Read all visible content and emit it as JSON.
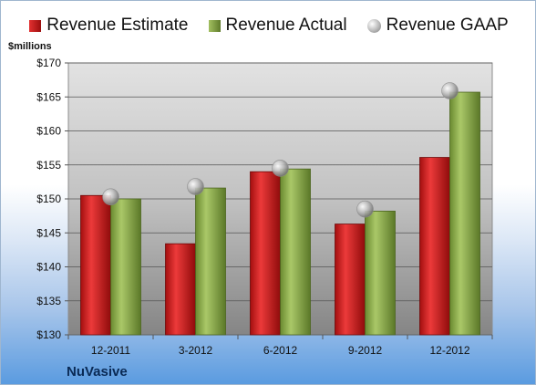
{
  "legend": {
    "items": [
      {
        "label": "Revenue Estimate",
        "color": "#cc1a1a",
        "shape": "square"
      },
      {
        "label": "Revenue Actual",
        "color": "#8aa84a",
        "shape": "square"
      },
      {
        "label": "Revenue GAAP",
        "color": "#b8b8b8",
        "shape": "circle"
      }
    ]
  },
  "unit_label": "$millions",
  "brand": "NuVasive",
  "colors": {
    "estimate": "#cc1a1a",
    "actual": "#8aa84a",
    "gaap": "#b8b8b8",
    "plot_bg_top": "#dcdcdc",
    "plot_bg_bottom": "#8a8a8a",
    "page_bottom": "#5a9be0"
  },
  "chart_data": {
    "type": "bar",
    "categories": [
      "12-2011",
      "3-2012",
      "6-2012",
      "9-2012",
      "12-2012"
    ],
    "series": [
      {
        "name": "Revenue Estimate",
        "kind": "bar",
        "values": [
          150.5,
          143.4,
          154.0,
          146.3,
          156.1
        ]
      },
      {
        "name": "Revenue Actual",
        "kind": "bar",
        "values": [
          150.0,
          151.6,
          154.4,
          148.2,
          165.7
        ]
      },
      {
        "name": "Revenue GAAP",
        "kind": "marker",
        "values": [
          150.3,
          151.8,
          154.5,
          148.5,
          165.9
        ]
      }
    ],
    "ylabel": "$millions",
    "ylim": [
      130,
      170
    ],
    "yticks": [
      130,
      135,
      140,
      145,
      150,
      155,
      160,
      165,
      170
    ],
    "ytick_labels": [
      "$130",
      "$135",
      "$140",
      "$145",
      "$150",
      "$155",
      "$160",
      "$165",
      "$170"
    ],
    "grid": true,
    "legend_position": "top"
  }
}
